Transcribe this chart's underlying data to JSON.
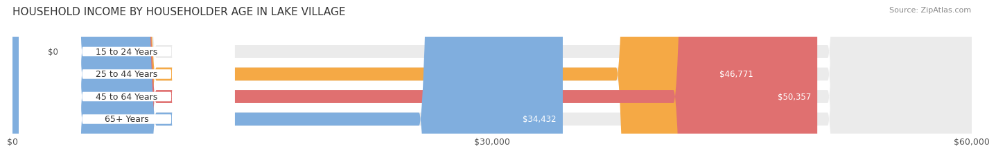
{
  "title": "HOUSEHOLD INCOME BY HOUSEHOLDER AGE IN LAKE VILLAGE",
  "source": "Source: ZipAtlas.com",
  "categories": [
    "15 to 24 Years",
    "25 to 44 Years",
    "45 to 64 Years",
    "65+ Years"
  ],
  "values": [
    0,
    46771,
    50357,
    34432
  ],
  "bar_colors": [
    "#F4A0B0",
    "#F5A945",
    "#E07070",
    "#80AEDE"
  ],
  "bar_bg_color": "#EBEBEB",
  "max_value": 60000,
  "xtick_values": [
    0,
    30000,
    60000
  ],
  "xtick_labels": [
    "$0",
    "$30,000",
    "$60,000"
  ],
  "title_fontsize": 11,
  "source_fontsize": 8,
  "label_fontsize": 9,
  "bar_label_fontsize": 8.5,
  "value_labels": [
    "$0",
    "$46,771",
    "$50,357",
    "$34,432"
  ],
  "bar_height": 0.58,
  "background_color": "#ffffff"
}
